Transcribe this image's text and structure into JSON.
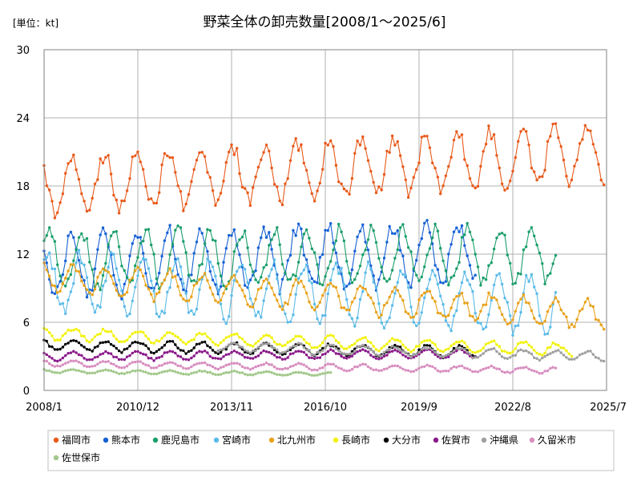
{
  "chart_data": {
    "type": "line",
    "title": "野菜全体の卸売数量[2008/1～2025/6]",
    "unit_label": "[単位：kt]",
    "ylim": [
      0,
      30
    ],
    "yticks": [
      0,
      6,
      12,
      18,
      24,
      30
    ],
    "xlim": [
      "2008-01",
      "2025-07"
    ],
    "xticks": [
      "2008/1",
      "2010/12",
      "2013/11",
      "2016/10",
      "2019/9",
      "2022/8",
      "2025/7"
    ],
    "grid": true,
    "legend_position": "bottom",
    "series": [
      {
        "name": "福岡市",
        "color": "#e8591a",
        "start": "2008-01",
        "end": "2025-06",
        "base": 18.0,
        "trend": 3.0,
        "amp": 2.4,
        "peak": 11.5
      },
      {
        "name": "熊本市",
        "color": "#1560d4",
        "start": "2008-01",
        "end": "2021-06",
        "base": 11.0,
        "trend": 1.5,
        "amp": 2.6,
        "peak": 11.5
      },
      {
        "name": "鹿児島市",
        "color": "#1a9e6a",
        "start": "2008-01",
        "end": "2023-12",
        "base": 11.5,
        "trend": 0.5,
        "amp": 2.4,
        "peak": 3.0
      },
      {
        "name": "宮崎市",
        "color": "#5bbbe8",
        "start": "2008-01",
        "end": "2023-12",
        "base": 9.5,
        "trend": -2.0,
        "amp": 2.4,
        "peak": 2.5
      },
      {
        "name": "北九州市",
        "color": "#e8a21a",
        "start": "2008-01",
        "end": "2025-06",
        "base": 10.0,
        "trend": -3.5,
        "amp": 1.2,
        "peak": 12.0
      },
      {
        "name": "長崎市",
        "color": "#f2f20a",
        "start": "2008-01",
        "end": "2024-06",
        "base": 5.0,
        "trend": -1.5,
        "amp": 0.5,
        "peak": 12.0
      },
      {
        "name": "大分市",
        "color": "#000000",
        "start": "2008-01",
        "end": "2021-06",
        "base": 4.0,
        "trend": -0.8,
        "amp": 0.45,
        "peak": 12.0
      },
      {
        "name": "佐賀市",
        "color": "#8a1a8a",
        "start": "2008-01",
        "end": "2021-06",
        "base": 3.0,
        "trend": 0.3,
        "amp": 0.35,
        "peak": 12.0
      },
      {
        "name": "沖縄県",
        "color": "#a0a0a0",
        "start": "2013-06",
        "end": "2025-06",
        "base": 4.2,
        "trend": -1.2,
        "amp": 0.4,
        "peak": 12.0
      },
      {
        "name": "久留米市",
        "color": "#d88ec0",
        "start": "2008-01",
        "end": "2023-12",
        "base": 2.4,
        "trend": -0.7,
        "amp": 0.25,
        "peak": 12.0
      },
      {
        "name": "佐世保市",
        "color": "#a2c88a",
        "start": "2008-01",
        "end": "2016-12",
        "base": 1.7,
        "trend": -0.5,
        "amp": 0.15,
        "peak": 12.0
      }
    ]
  }
}
